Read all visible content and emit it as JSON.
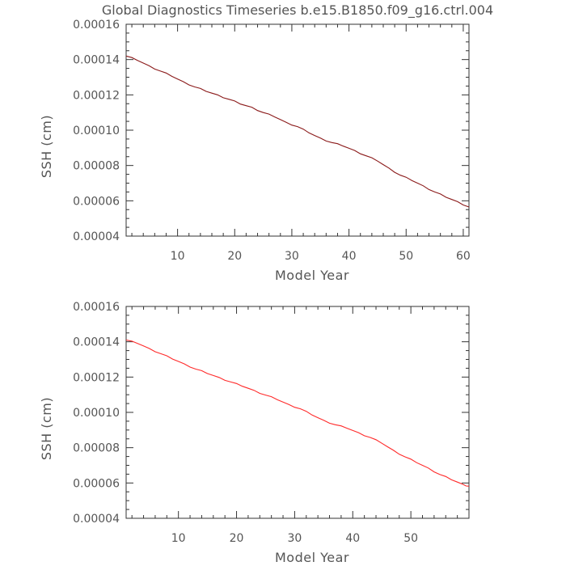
{
  "title": "Global Diagnostics Timeseries b.e15.B1850.f09_g16.ctrl.004",
  "chart_data": [
    {
      "type": "line",
      "title": "Global Diagnostics Timeseries b.e15.B1850.f09_g16.ctrl.004",
      "xlabel": "Model Year",
      "ylabel": "SSH (cm)",
      "xlim": [
        1,
        61
      ],
      "ylim": [
        4e-05,
        0.00016
      ],
      "xticks": [
        10,
        20,
        30,
        40,
        50,
        60
      ],
      "yticks": [
        "0.00004",
        "0.00006",
        "0.00008",
        "0.00010",
        "0.00012",
        "0.00014",
        "0.00016"
      ],
      "grid": false,
      "color": "#8b1a1a",
      "series": [
        {
          "x": [
            1,
            3,
            5,
            7,
            9,
            11,
            13,
            15,
            17,
            19,
            21,
            23,
            25,
            27,
            29,
            31,
            33,
            35,
            37,
            39,
            41,
            43,
            45,
            47,
            49,
            51,
            53,
            55,
            57,
            59,
            61
          ],
          "y": [
            0.000142,
            0.0001395,
            0.0001365,
            0.0001335,
            0.0001305,
            0.0001275,
            0.0001245,
            0.000122,
            0.00012,
            0.0001175,
            0.0001148,
            0.000113,
            0.00011,
            0.0001075,
            0.0001045,
            0.000102,
            9.85e-05,
            9.55e-05,
            9.3e-05,
            9.1e-05,
            8.85e-05,
            8.55e-05,
            8.25e-05,
            7.85e-05,
            7.45e-05,
            7.15e-05,
            6.85e-05,
            6.5e-05,
            6.2e-05,
            5.95e-05,
            5.65e-05
          ]
        }
      ]
    },
    {
      "type": "line",
      "xlabel": "Model Year",
      "ylabel": "SSH (cm)",
      "xlim": [
        1,
        60
      ],
      "ylim": [
        4e-05,
        0.00016
      ],
      "xticks": [
        10,
        20,
        30,
        40,
        50
      ],
      "yticks": [
        "0.00004",
        "0.00006",
        "0.00008",
        "0.00010",
        "0.00012",
        "0.00014",
        "0.00016"
      ],
      "grid": false,
      "color": "#ff2a2a",
      "series": [
        {
          "x": [
            1,
            3,
            5,
            7,
            9,
            11,
            13,
            15,
            17,
            19,
            21,
            23,
            25,
            27,
            29,
            31,
            33,
            35,
            37,
            39,
            41,
            43,
            45,
            47,
            49,
            51,
            53,
            55,
            57,
            59,
            60
          ],
          "y": [
            0.000141,
            0.000139,
            0.0001362,
            0.0001332,
            0.0001302,
            0.0001275,
            0.0001245,
            0.000122,
            0.0001198,
            0.0001172,
            0.0001148,
            0.0001125,
            0.0001098,
            0.0001072,
            0.0001045,
            0.000102,
            9.85e-05,
            9.55e-05,
            9.3e-05,
            9.1e-05,
            8.85e-05,
            8.58e-05,
            8.25e-05,
            7.85e-05,
            7.48e-05,
            7.15e-05,
            6.85e-05,
            6.48e-05,
            6.18e-05,
            5.92e-05,
            5.82e-05
          ]
        }
      ]
    }
  ]
}
